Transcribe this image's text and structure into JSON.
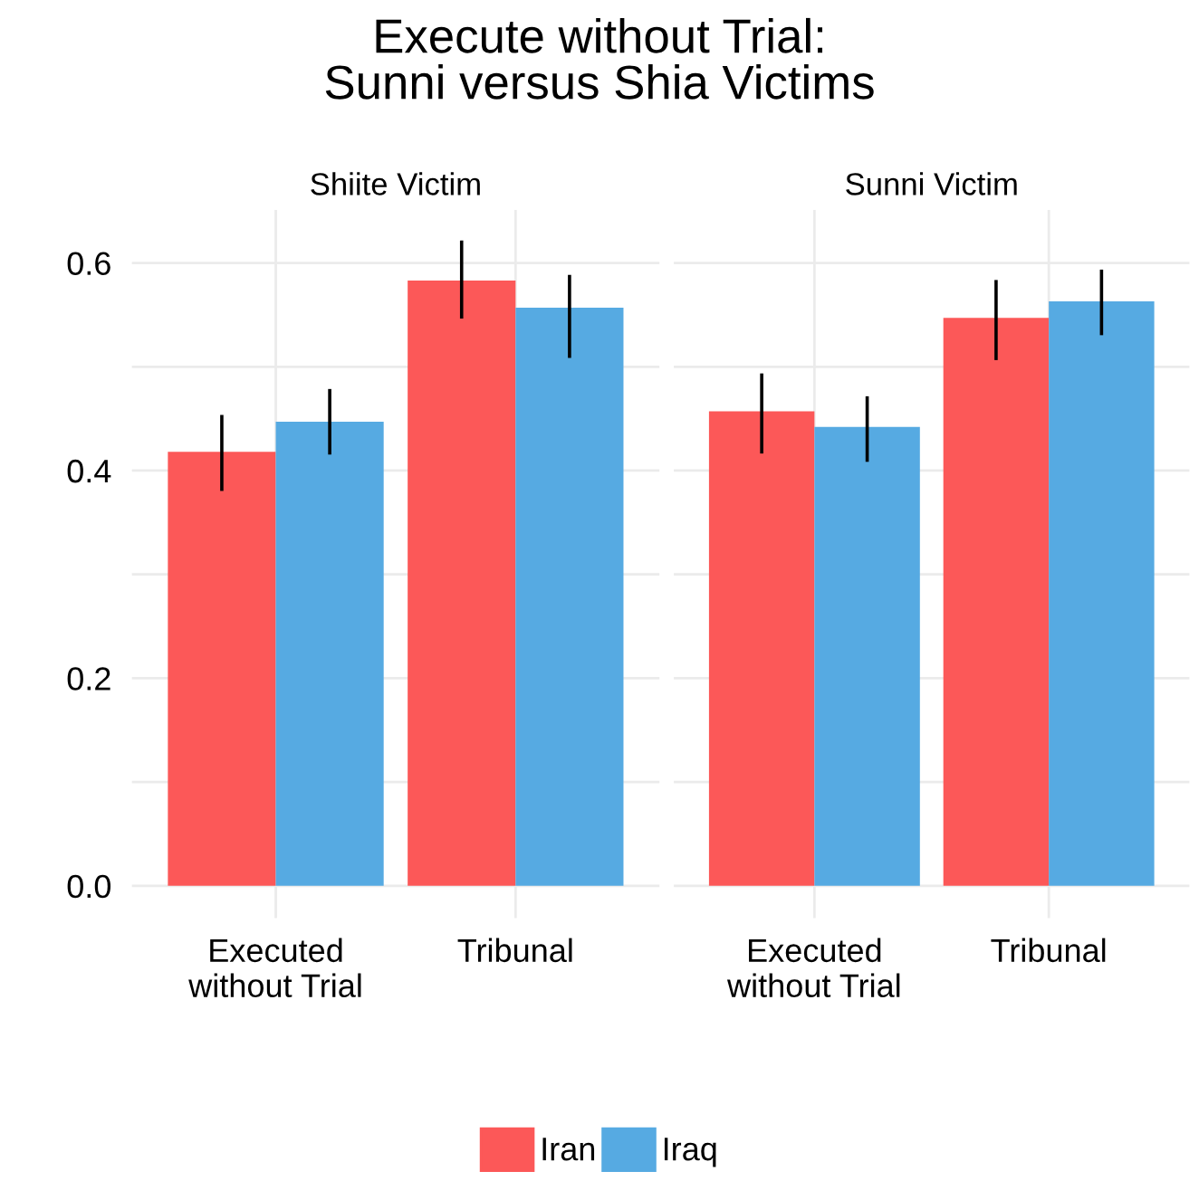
{
  "chart_data": [
    {
      "type": "bar",
      "title": "Execute without Trial:\nSunni versus Shia Victims",
      "subtitle": "Shiite Victim",
      "categories": [
        "Executed\nwithout Trial",
        "Tribunal"
      ],
      "series": [
        {
          "name": "Iran",
          "color": "#fc5858",
          "values": [
            0.418,
            0.583
          ],
          "errors": [
            [
              0.382,
              0.452
            ],
            [
              0.548,
              0.62
            ]
          ]
        },
        {
          "name": "Iraq",
          "color": "#56aae2",
          "values": [
            0.447,
            0.557
          ],
          "errors": [
            [
              0.417,
              0.477
            ],
            [
              0.51,
              0.587
            ]
          ]
        }
      ],
      "ylim": [
        -0.031,
        0.651
      ],
      "yticks": [
        {
          "value": 0.0,
          "label": "0.0"
        },
        {
          "value": 0.1,
          "label": null
        },
        {
          "value": 0.2,
          "label": "0.2"
        },
        {
          "value": 0.3,
          "label": null
        },
        {
          "value": 0.4,
          "label": "0.4"
        },
        {
          "value": 0.5,
          "label": null
        },
        {
          "value": 0.6,
          "label": "0.6"
        }
      ],
      "grid": true,
      "legend": "bottom"
    },
    {
      "type": "bar",
      "subtitle": "Sunni Victim",
      "categories": [
        "Executed\nwithout Trial",
        "Tribunal"
      ],
      "series": [
        {
          "color": "#fc5858",
          "values": [
            0.457,
            0.547
          ],
          "errors": [
            [
              0.418,
              0.492
            ],
            [
              0.508,
              0.582
            ]
          ]
        },
        {
          "color": "#56aae2",
          "values": [
            0.442,
            0.563
          ],
          "errors": [
            [
              0.41,
              0.47
            ],
            [
              0.532,
              0.592
            ]
          ]
        }
      ],
      "ylim": [
        -0.031,
        0.651
      ],
      "yticks": [
        {
          "value": 0.0,
          "label": null
        },
        {
          "value": 0.1,
          "label": null
        },
        {
          "value": 0.2,
          "label": null
        },
        {
          "value": 0.3,
          "label": null
        },
        {
          "value": 0.4,
          "label": null
        },
        {
          "value": 0.5,
          "label": null
        },
        {
          "value": 0.6,
          "label": null
        }
      ],
      "grid": true,
      "tick_labels": "x"
    }
  ]
}
